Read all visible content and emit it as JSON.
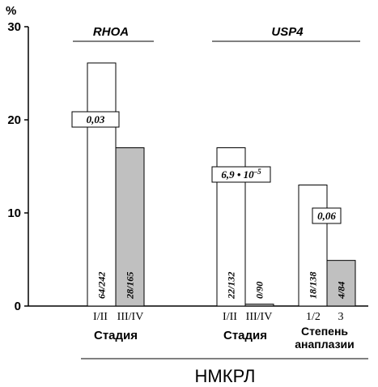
{
  "chart_data": {
    "type": "bar",
    "yunit": "%",
    "ylim": [
      0,
      30
    ],
    "yticks": [
      "0",
      "10",
      "20",
      "30"
    ],
    "grid": false,
    "group_headers": [
      {
        "id": "rhoa",
        "label": "RHOA"
      },
      {
        "id": "usp4",
        "label": "USP4"
      }
    ],
    "groups": [
      {
        "id": "rhoa_stage",
        "header": "rhoa",
        "caption": "Стадия",
        "categories": [
          "I/II",
          "III/IV"
        ],
        "values": [
          26.1,
          17.0
        ],
        "fills": [
          "#ffffff",
          "#c0c0c0"
        ],
        "bar_labels": [
          "64/242",
          "28/165"
        ],
        "pvalue": "0,03"
      },
      {
        "id": "usp4_stage",
        "header": "usp4",
        "caption": "Стадия",
        "categories": [
          "I/II",
          "III/IV"
        ],
        "values": [
          17.0,
          0.2
        ],
        "fills": [
          "#ffffff",
          "#c0c0c0"
        ],
        "bar_labels": [
          "22/132",
          "0/90"
        ],
        "pvalue": "6,9 • 10",
        "pvalue_exp": "–5"
      },
      {
        "id": "usp4_grade",
        "header": "usp4",
        "caption_lines": [
          "Степень",
          "анаплазии"
        ],
        "categories": [
          "1/2",
          "3"
        ],
        "values": [
          13.0,
          4.9
        ],
        "fills": [
          "#ffffff",
          "#c0c0c0"
        ],
        "bar_labels": [
          "18/138",
          "4/84"
        ],
        "pvalue": "0,06"
      }
    ],
    "footer": "НМКРЛ"
  }
}
